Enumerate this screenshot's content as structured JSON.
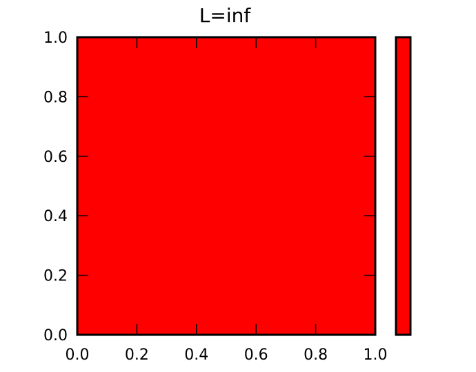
{
  "chart_data": {
    "type": "heatmap",
    "title": "L=inf",
    "xlabel": "",
    "ylabel": "",
    "xlim": [
      0.0,
      1.0
    ],
    "ylim": [
      0.0,
      1.0
    ],
    "x_ticks": [
      "0.0",
      "0.2",
      "0.4",
      "0.6",
      "0.8",
      "1.0"
    ],
    "y_ticks": [
      "0.0",
      "0.2",
      "0.4",
      "0.6",
      "0.8",
      "1.0"
    ],
    "grid": false,
    "fill_color": "#ff0000",
    "colorbar": {
      "fill_color": "#ff0000"
    }
  }
}
